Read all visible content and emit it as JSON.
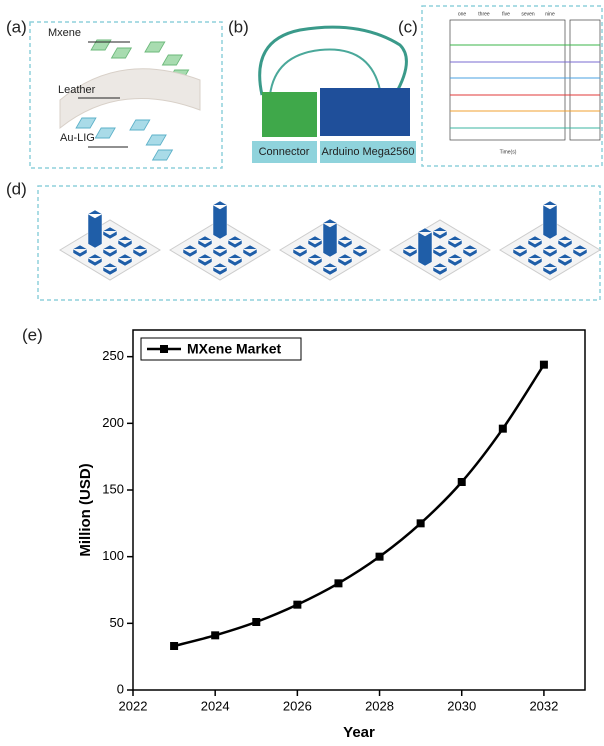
{
  "panels": {
    "a": {
      "label": "(a)",
      "mxene": "Mxene",
      "leather": "Leather",
      "aulig": "Au-LIG"
    },
    "b": {
      "label": "(b)",
      "connector": "Connector",
      "arduino": "Arduino Mega2560"
    },
    "c": {
      "label": "(c)",
      "words": [
        "one",
        "three",
        "five",
        "seven",
        "nine"
      ],
      "xlabel": "Time(s)"
    },
    "d": {
      "label": "(d)"
    },
    "e": {
      "label": "(e)"
    }
  },
  "chart_data": {
    "type": "line",
    "x": [
      2023,
      2024,
      2025,
      2026,
      2027,
      2028,
      2029,
      2030,
      2031,
      2032
    ],
    "series": [
      {
        "name": "MXene Market",
        "color": "#000000",
        "values": [
          33,
          41,
          51,
          64,
          80,
          100,
          125,
          156,
          196,
          244
        ]
      }
    ],
    "xlabel": "Year",
    "ylabel": "Million (USD)",
    "xlim": [
      2022,
      2033
    ],
    "ylim": [
      0,
      270
    ],
    "xticks": [
      2022,
      2024,
      2026,
      2028,
      2030,
      2032
    ],
    "yticks": [
      0,
      50,
      100,
      150,
      200,
      250
    ],
    "legend": "top-left",
    "grid": false
  }
}
